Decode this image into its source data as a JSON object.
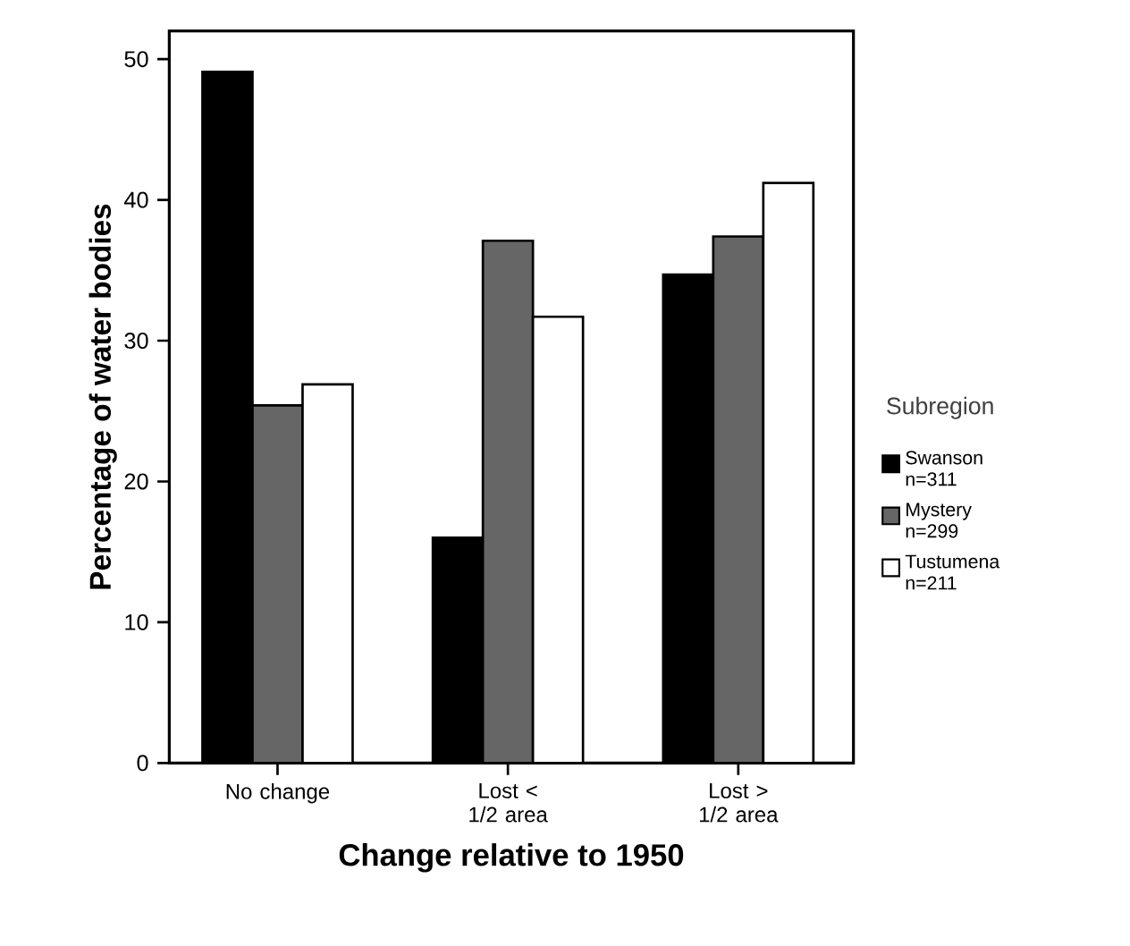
{
  "chart_data": {
    "type": "bar",
    "xlabel": "Change relative to 1950",
    "ylabel": "Percentage of water bodies",
    "legend_title": "Subregion",
    "legend": "right",
    "categories": [
      "No change",
      "Lost < 1/2 area",
      "Lost > 1/2 area"
    ],
    "ylim": [
      0,
      52
    ],
    "yticks": [
      0,
      10,
      20,
      30,
      40,
      50
    ],
    "series": [
      {
        "name": "Swanson n=311",
        "color": "#000000",
        "values": [
          49.1,
          16.0,
          34.7
        ]
      },
      {
        "name": "Mystery n=299",
        "color": "#666666",
        "values": [
          25.4,
          37.1,
          37.4
        ]
      },
      {
        "name": "Tustumena n=211",
        "color": "#ffffff",
        "values": [
          26.9,
          31.7,
          41.2
        ]
      }
    ]
  }
}
